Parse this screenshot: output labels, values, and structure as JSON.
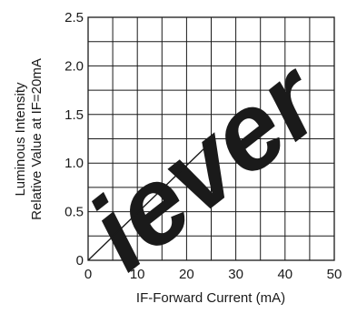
{
  "chart_data": {
    "type": "line",
    "title": "",
    "xlabel": "IF-Forward Current (mA)",
    "ylabel_lines": [
      "Luminous Intensity",
      "Relative Value at IF=20mA"
    ],
    "xlim": [
      0,
      50
    ],
    "ylim": [
      0,
      2.5
    ],
    "x_tick_labels": [
      "0",
      "10",
      "20",
      "30",
      "40",
      "50"
    ],
    "y_tick_labels": [
      "0",
      "0.5",
      "1.0",
      "1.5",
      "2.0",
      "2.5"
    ],
    "x_tick_values": [
      0,
      10,
      20,
      30,
      40,
      50
    ],
    "y_tick_values": [
      0,
      0.5,
      1.0,
      1.5,
      2.0,
      2.5
    ],
    "x_minor_step": 5,
    "y_minor_step": 0.25,
    "grid": true,
    "legend": "none",
    "series": [
      {
        "x": [
          0,
          25
        ],
        "y": [
          0,
          1.22
        ]
      }
    ],
    "colors": {
      "grid": "#1a1a1a",
      "line": "#1a1a1a",
      "watermark": "#e9e9e9"
    },
    "watermark_text": "iever"
  }
}
